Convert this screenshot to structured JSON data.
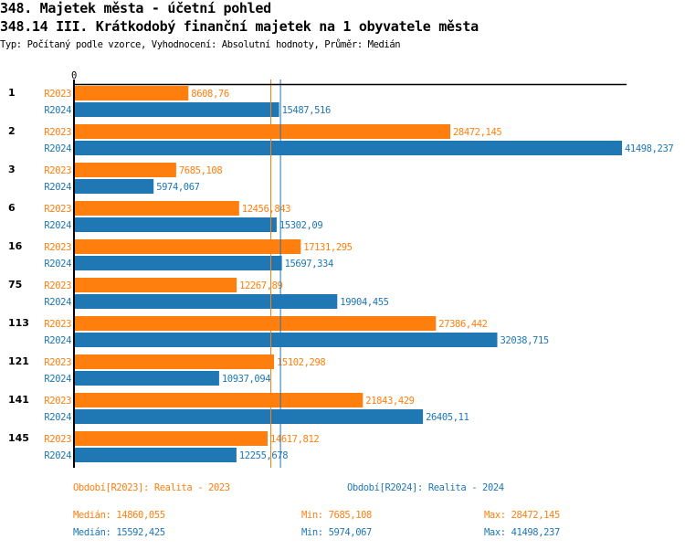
{
  "header": {
    "title": "348. Majetek města - účetní pohled",
    "subtitle": "348.14 III. Krátkodobý finanční majetek na 1 obyvatele města",
    "info": "Typ: Počítaný podle vzorce, Vyhodnocení: Absolutní hodnoty, Průměr: Medián"
  },
  "chart_data": {
    "type": "bar",
    "orientation": "horizontal",
    "title": "348.14 III. Krátkodobý finanční majetek na 1 obyvatele města",
    "axis_zero_label": "0",
    "xlim": [
      0,
      41800
    ],
    "categories": [
      "1",
      "2",
      "3",
      "6",
      "16",
      "75",
      "113",
      "121",
      "141",
      "145"
    ],
    "series": [
      {
        "name": "R2023",
        "color": "#ff7f0e",
        "values": [
          8608.76,
          28472.145,
          7685.108,
          12456.843,
          17131.295,
          12267.89,
          27386.442,
          15102.298,
          21843.429,
          14617.812
        ],
        "labels": [
          "8608,76",
          "28472,145",
          "7685,108",
          "12456,843",
          "17131,295",
          "12267,89",
          "27386,442",
          "15102,298",
          "21843,429",
          "14617,812"
        ]
      },
      {
        "name": "R2024",
        "color": "#1f77b4",
        "values": [
          15487.516,
          41498.237,
          5974.067,
          15302.09,
          15697.334,
          19904.455,
          32038.715,
          10937.094,
          26405.11,
          12255.678
        ],
        "labels": [
          "15487,516",
          "41498,237",
          "5974,067",
          "15302,09",
          "15697,334",
          "19904,455",
          "32038,715",
          "10937,094",
          "26405,11",
          "12255,678"
        ]
      }
    ],
    "medians": [
      {
        "series": "R2023",
        "value": 14860.055
      },
      {
        "series": "R2024",
        "value": 15592.425
      }
    ]
  },
  "legend": {
    "r2023": "Období[R2023]: Realita - 2023",
    "r2024": "Období[R2024]: Realita - 2024"
  },
  "stats": {
    "r2023": {
      "median": "Medián: 14860,055",
      "min": "Min: 7685,108",
      "max": "Max: 28472,145"
    },
    "r2024": {
      "median": "Medián: 15592,425",
      "min": "Min: 5974,067",
      "max": "Max: 41498,237"
    }
  },
  "colors": {
    "r2023": "#ff7f0e",
    "r2024": "#1f77b4"
  }
}
